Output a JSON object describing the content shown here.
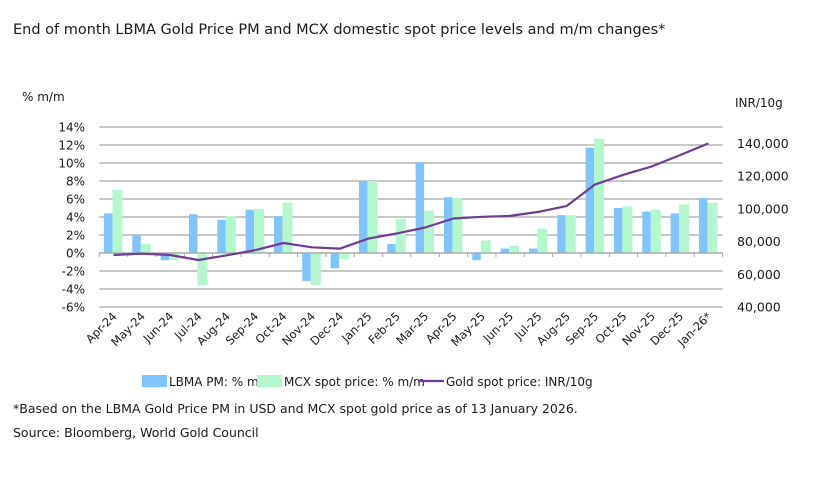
{
  "title": "End of month LBMA Gold Price PM and MCX domestic spot price levels and m/m changes*",
  "footnote": "*Based on the LBMA Gold Price PM in USD and MCX spot gold price as of 13 January 2026.",
  "source": "Source: Bloomberg, World Gold Council",
  "chart_data": {
    "type": "bar+line",
    "title": "End of month LBMA Gold Price PM and MCX domestic spot price levels and m/m changes*",
    "ylabel_left": "% m/m",
    "ylabel_right": "INR/10g",
    "ylim_left": [
      -6,
      14
    ],
    "yticks_left": [
      "14%",
      "12%",
      "10%",
      "8%",
      "6%",
      "4%",
      "2%",
      "0%",
      "-2%",
      "-4%",
      "-6%"
    ],
    "ylim_right": [
      40000,
      150000
    ],
    "yticks_right": [
      "140,000",
      "120,000",
      "100,000",
      "80,000",
      "60,000",
      "40,000"
    ],
    "grid": true,
    "legend_position": "bottom",
    "colors": {
      "lbma": "#80c4ff",
      "mcx": "#b5f7cd",
      "gold": "#6e3d91",
      "grid": "#a6a6a6"
    },
    "categories": [
      "Apr-24",
      "May-24",
      "Jun-24",
      "Jul-24",
      "Aug-24",
      "Sep-24",
      "Oct-24",
      "Nov-24",
      "Dec-24",
      "Jan-25",
      "Feb-25",
      "Mar-25",
      "Apr-25",
      "May-25",
      "Jun-25",
      "Jul-25",
      "Aug-25",
      "Sep-25",
      "Oct-25",
      "Nov-25",
      "Dec-25",
      "Jan-26*"
    ],
    "series": [
      {
        "name": "LBMA PM: % m/m",
        "type": "bar",
        "axis": "left",
        "values": [
          4.4,
          2.0,
          -0.8,
          4.3,
          3.7,
          4.8,
          4.1,
          -3.1,
          -1.7,
          8.0,
          1.0,
          10.1,
          6.2,
          -0.8,
          0.5,
          0.5,
          4.2,
          11.7,
          5.0,
          4.6,
          4.4,
          6.1
        ]
      },
      {
        "name": "MCX spot price: % m/m",
        "type": "bar",
        "axis": "left",
        "values": [
          7.0,
          1.0,
          -0.8,
          -3.6,
          4.1,
          4.9,
          5.6,
          -3.6,
          -0.7,
          8.0,
          3.8,
          4.7,
          6.1,
          1.4,
          0.8,
          2.7,
          4.2,
          12.7,
          5.2,
          4.8,
          5.4,
          5.6
        ]
      },
      {
        "name": "Gold spot price: INR/10g",
        "type": "line",
        "axis": "right",
        "values": [
          71800,
          72600,
          71800,
          68700,
          71600,
          74700,
          79100,
          76500,
          75700,
          81800,
          85000,
          88600,
          94100,
          95100,
          95700,
          98100,
          101800,
          114900,
          120800,
          125900,
          132800,
          140000
        ]
      }
    ]
  }
}
